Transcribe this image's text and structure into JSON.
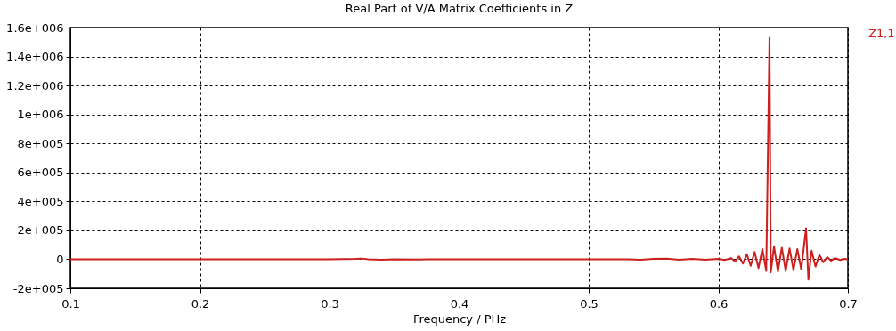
{
  "chart_data": {
    "type": "line",
    "title": "Real Part of V/A Matrix Coefficients in Z",
    "xlabel": "Frequency / PHz",
    "x": [
      0.1,
      0.3,
      0.32,
      0.325,
      0.33,
      0.34,
      0.35,
      0.37,
      0.375,
      0.53,
      0.54,
      0.55,
      0.56,
      0.57,
      0.58,
      0.59,
      0.6,
      0.605,
      0.61,
      0.613,
      0.616,
      0.619,
      0.622,
      0.625,
      0.628,
      0.631,
      0.634,
      0.637,
      0.6395,
      0.6405,
      0.643,
      0.646,
      0.649,
      0.652,
      0.655,
      0.658,
      0.661,
      0.664,
      0.6677,
      0.6695,
      0.672,
      0.675,
      0.678,
      0.681,
      0.684,
      0.687,
      0.69,
      0.694,
      0.697,
      0.7
    ],
    "series": [
      {
        "name": "Z1,1",
        "color": "#cc1f1f",
        "values": [
          0,
          0,
          3000,
          5000,
          0,
          -3000,
          0,
          -2000,
          0,
          0,
          -3000,
          3000,
          4000,
          -3000,
          2000,
          -3000,
          3000,
          -5000,
          8000,
          -15000,
          20000,
          -30000,
          35000,
          -45000,
          50000,
          -60000,
          70000,
          -80000,
          1530000,
          -90000,
          90000,
          -85000,
          80000,
          -80000,
          75000,
          -75000,
          70000,
          -70000,
          215000,
          -140000,
          60000,
          -50000,
          30000,
          -20000,
          15000,
          -10000,
          8000,
          -5000,
          3000,
          0
        ]
      }
    ],
    "xlim": [
      0.1,
      0.7
    ],
    "xticks": [
      0.1,
      0.2,
      0.3,
      0.4,
      0.5,
      0.6,
      0.7
    ],
    "ylim": [
      -200000,
      1600000
    ],
    "yticks": [
      {
        "value": -200000,
        "label": "-2e+005"
      },
      0,
      {
        "value": 200000,
        "label": "2e+005"
      },
      {
        "value": 400000,
        "label": "4e+005"
      },
      {
        "value": 600000,
        "label": "6e+005"
      },
      {
        "value": 800000,
        "label": "8e+005"
      },
      {
        "value": 1000000,
        "label": "1e+006"
      },
      {
        "value": 1200000,
        "label": "1.2e+006"
      },
      {
        "value": 1400000,
        "label": "1.4e+006"
      },
      {
        "value": 1600000,
        "label": "1.6e+006"
      }
    ],
    "grid": true,
    "legend": "top right",
    "line_style": "solid",
    "marker": "none"
  }
}
